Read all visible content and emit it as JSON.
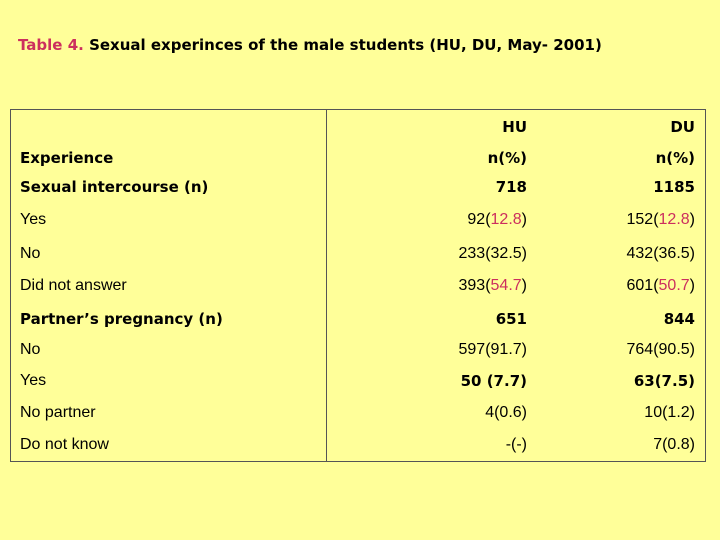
{
  "title": {
    "prefix": "Table 4.",
    "text": " Sexual experinces of the male students (HU, DU, May- 2001)"
  },
  "columns": {
    "hu": "HU",
    "du": "DU"
  },
  "rows": [
    {
      "label": "Experience",
      "hu": "n(%)",
      "du": "n(%)"
    },
    {
      "label": "Sexual intercourse (n)",
      "hu": "718",
      "du": "1185"
    },
    {
      "label": "Yes",
      "hu_a": "92(",
      "hu_b": "12.8",
      "hu_c": ")",
      "du_a": "152(",
      "du_b": "12.8",
      "du_c": ")"
    },
    {
      "label": "No",
      "hu": "233(32.5)",
      "du": "432(36.5)"
    },
    {
      "label": "Did not answer",
      "hu_a": "393(",
      "hu_b": "54.7",
      "hu_c": ")",
      "du_a": "601(",
      "du_b": "50.7",
      "du_c": ")"
    },
    {
      "label": "Partner’s pregnancy (n)",
      "hu": "651",
      "du": "844"
    },
    {
      "label": "No",
      "hu": "597(91.7)",
      "du": "764(90.5)"
    },
    {
      "label": "Yes",
      "hu": "50 (7.7)",
      "du": "63(7.5)"
    },
    {
      "label": "No partner",
      "hu": "4(0.6)",
      "du": "10(1.2)"
    },
    {
      "label": "Do not know",
      "hu": "-(-)",
      "du": "7(0.8)"
    }
  ],
  "colors": {
    "background": "#ffff99",
    "highlight": "#cc2f5e"
  }
}
